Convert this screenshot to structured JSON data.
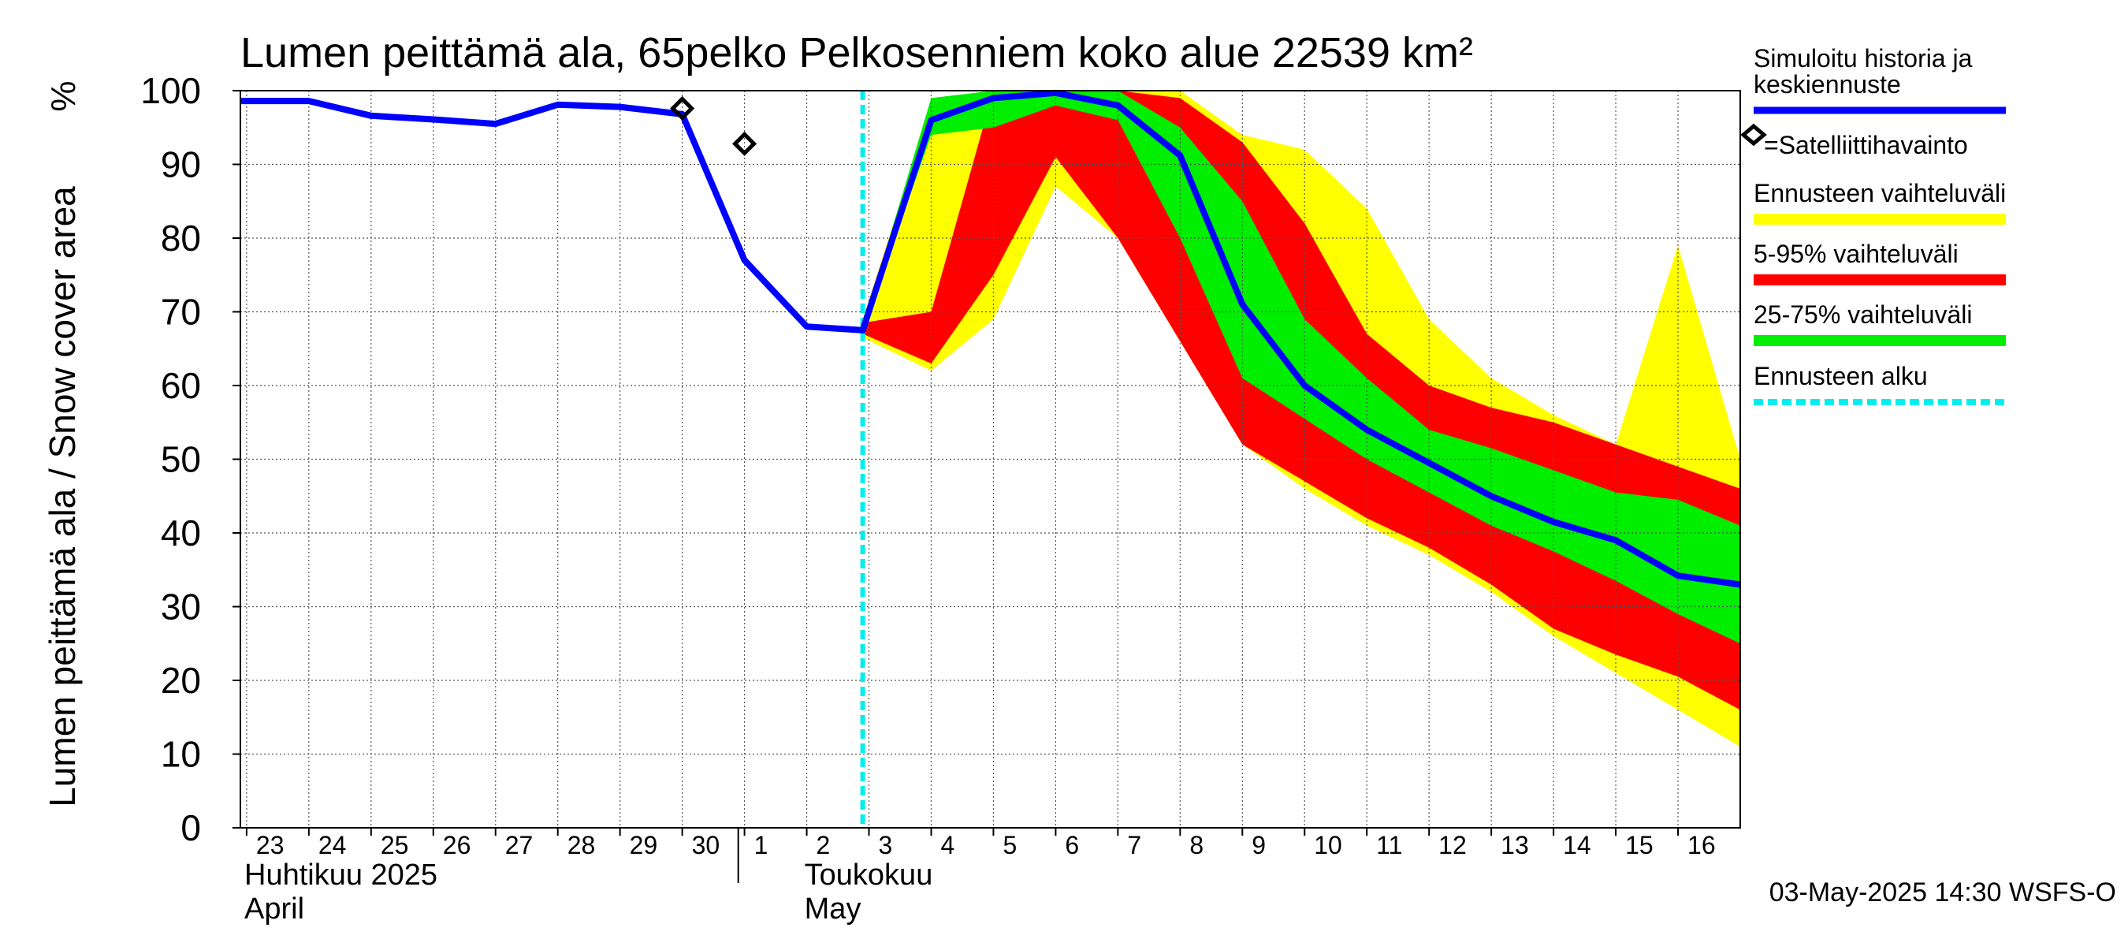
{
  "chart_data": {
    "type": "area",
    "title": "Lumen peittämä ala, 65pelko Pelkosenniem koko alue 22539 km²",
    "ylabel": "Lumen peittämä ala / Snow cover area",
    "yunit": "%",
    "ylim": [
      0,
      100
    ],
    "yticks": [
      0,
      10,
      20,
      30,
      40,
      50,
      60,
      70,
      80,
      90,
      100
    ],
    "xlim": [
      -0.1,
      24.0
    ],
    "grid": true,
    "xaxis": {
      "day_labels": [
        {
          "pos": 0,
          "label": "23"
        },
        {
          "pos": 1,
          "label": "24"
        },
        {
          "pos": 2,
          "label": "25"
        },
        {
          "pos": 3,
          "label": "26"
        },
        {
          "pos": 4,
          "label": "27"
        },
        {
          "pos": 5,
          "label": "28"
        },
        {
          "pos": 6,
          "label": "29"
        },
        {
          "pos": 7,
          "label": "30"
        },
        {
          "pos": 8,
          "label": "1"
        },
        {
          "pos": 9,
          "label": "2"
        },
        {
          "pos": 10,
          "label": "3"
        },
        {
          "pos": 11,
          "label": "4"
        },
        {
          "pos": 12,
          "label": "5"
        },
        {
          "pos": 13,
          "label": "6"
        },
        {
          "pos": 14,
          "label": "7"
        },
        {
          "pos": 15,
          "label": "8"
        },
        {
          "pos": 16,
          "label": "9"
        },
        {
          "pos": 17,
          "label": "10"
        },
        {
          "pos": 18,
          "label": "11"
        },
        {
          "pos": 19,
          "label": "12"
        },
        {
          "pos": 20,
          "label": "13"
        },
        {
          "pos": 21,
          "label": "14"
        },
        {
          "pos": 22,
          "label": "15"
        },
        {
          "pos": 23,
          "label": "16"
        }
      ],
      "month_labels": [
        {
          "pos": -0.1,
          "line1": "Huhtikuu  2025",
          "line2": "April"
        },
        {
          "pos": 8.9,
          "line1": "Toukokuu",
          "line2": "May"
        }
      ],
      "month_separator_pos": 7.9
    },
    "forecast_start": 9.9,
    "series": [
      {
        "name": "Simuloitu historia ja keskiennuste",
        "type": "line",
        "color": "#0000ff",
        "x": [
          -0.1,
          1,
          2,
          3,
          4,
          5,
          6,
          7,
          8,
          9,
          9.9,
          11,
          12,
          13,
          14,
          15,
          16,
          17,
          18,
          19,
          20,
          21,
          22,
          23,
          24
        ],
        "y": [
          98.6,
          98.6,
          96.6,
          96.1,
          95.5,
          98.1,
          97.8,
          96.8,
          77,
          68,
          67.5,
          96,
          99,
          99.7,
          98,
          91.2,
          71,
          60,
          54,
          49.5,
          45,
          41.5,
          39,
          34.2,
          33
        ]
      },
      {
        "name": "Ennusteen vaihteluväli",
        "type": "band",
        "color": "#ffff00",
        "x": [
          9.9,
          11,
          12,
          13,
          14,
          15,
          16,
          17,
          18,
          19,
          20,
          21,
          22,
          23,
          24
        ],
        "upper": [
          69,
          98,
          100,
          100,
          100,
          100,
          94,
          92,
          84,
          69,
          61,
          56,
          52,
          79,
          50
        ],
        "lower": [
          66.5,
          62,
          69,
          87,
          80,
          66,
          52,
          46,
          41,
          37,
          32,
          26,
          21,
          16,
          11
        ]
      },
      {
        "name": "5-95% vaihteluväli",
        "type": "band",
        "color": "#ff0000",
        "x": [
          9.9,
          11,
          12,
          13,
          14,
          15,
          16,
          17,
          18,
          19,
          20,
          21,
          22,
          23,
          24
        ],
        "upper": [
          68.5,
          70,
          100,
          100,
          100,
          99,
          93,
          82,
          67,
          60,
          57,
          55,
          52,
          49,
          46
        ],
        "lower": [
          67,
          63,
          75,
          91,
          80,
          66,
          52,
          47,
          42,
          38,
          33,
          27,
          23.5,
          20.5,
          16
        ]
      },
      {
        "name": "25-75% vaihteluväli",
        "type": "band",
        "color": "#00ee00",
        "x": [
          9.9,
          11,
          12,
          13,
          14,
          15,
          16,
          17,
          18,
          19,
          20,
          21,
          22,
          23,
          24
        ],
        "upper": [
          68,
          99,
          100,
          100,
          100,
          95,
          85,
          69,
          61,
          54,
          51.5,
          48.5,
          45.5,
          44.5,
          41
        ],
        "lower": [
          67.5,
          94,
          95,
          98,
          96,
          80,
          61,
          55.5,
          50,
          45.5,
          41,
          37.5,
          33.5,
          29,
          25
        ]
      },
      {
        "name": "=Satelliittihavainto",
        "type": "scatter",
        "marker": "diamond",
        "x": [
          7,
          8
        ],
        "y": [
          97.6,
          92.8
        ]
      },
      {
        "name": "Ennusteen alku",
        "type": "vline",
        "color": "#00eeee",
        "x": [
          9.9
        ]
      }
    ],
    "legend": {
      "placement": "right",
      "items": [
        {
          "label": "Simuloitu historia ja",
          "label2": "keskiennuste",
          "color": "#0000ff",
          "style": "line"
        },
        {
          "label": "=Satelliittihavainto",
          "style": "diamond"
        },
        {
          "label": "Ennusteen vaihteluväli",
          "color": "#ffff00",
          "style": "band"
        },
        {
          "label": "5-95% vaihteluväli",
          "color": "#ff0000",
          "style": "band"
        },
        {
          "label": "25-75% vaihteluväli",
          "color": "#00ee00",
          "style": "band"
        },
        {
          "label": "Ennusteen alku",
          "color": "#00eeee",
          "style": "dashed"
        }
      ]
    },
    "timestamp": "03-May-2025 14:30 WSFS-O"
  }
}
